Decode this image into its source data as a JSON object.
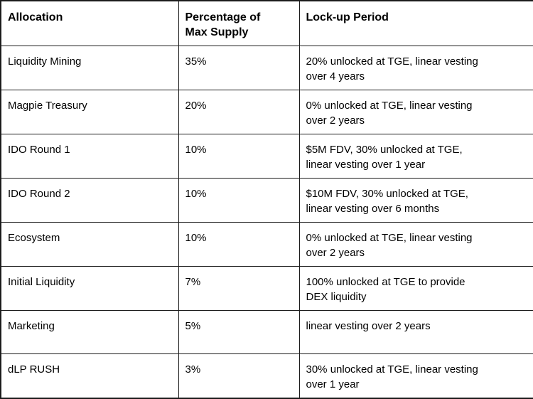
{
  "table": {
    "title_semantic": "Token allocation and lock-up schedule table",
    "columns": [
      {
        "label": "Allocation"
      },
      {
        "label": "Percentage of\nMax Supply"
      },
      {
        "label": "Lock-up Period"
      }
    ],
    "rows": [
      {
        "allocation": "Liquidity Mining",
        "percentage": "35%",
        "lockup": "20% unlocked at TGE, linear vesting\nover 4 years"
      },
      {
        "allocation": "Magpie Treasury",
        "percentage": "20%",
        "lockup": "0% unlocked at TGE, linear vesting\nover 2 years"
      },
      {
        "allocation": "IDO Round 1",
        "percentage": "10%",
        "lockup": "$5M FDV, 30% unlocked at TGE,\nlinear vesting over 1 year"
      },
      {
        "allocation": "IDO Round 2",
        "percentage": "10%",
        "lockup": "$10M FDV, 30% unlocked at TGE,\nlinear vesting over 6 months"
      },
      {
        "allocation": "Ecosystem",
        "percentage": "10%",
        "lockup": "0% unlocked at TGE, linear vesting\nover 2 years"
      },
      {
        "allocation": "Initial Liquidity",
        "percentage": "7%",
        "lockup": "100% unlocked at TGE to provide\nDEX liquidity"
      },
      {
        "allocation": "Marketing",
        "percentage": "5%",
        "lockup": "linear vesting over 2 years"
      },
      {
        "allocation": "dLP RUSH",
        "percentage": "3%",
        "lockup": "30% unlocked at TGE, linear vesting\nover 1 year"
      }
    ]
  },
  "colors": {
    "border": "#1c1c1c",
    "text": "#000000",
    "background": "#ffffff"
  }
}
